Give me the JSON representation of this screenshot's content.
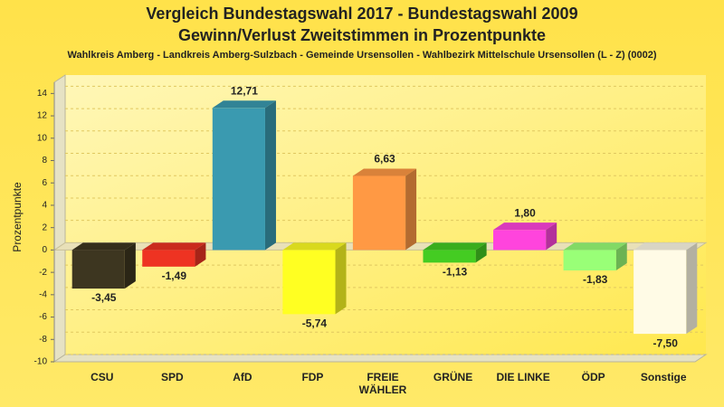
{
  "chart_data": {
    "type": "bar3d",
    "title": "Vergleich Bundestagswahl 2017 - Bundestagswahl 2009",
    "subtitle": "Gewinn/Verlust Zweitstimmen in Prozentpunkte",
    "caption": "Wahlkreis Amberg - Landkreis Amberg-Sulzbach - Gemeinde Ursensollen - Wahlbezirk Mittelschule Ursensollen (L - Z) (0002)",
    "y_label": "Prozentpunkte",
    "categories": [
      "CSU",
      "SPD",
      "AfD",
      "FDP",
      "FREIE\nWÄHLER",
      "GRÜNE",
      "DIE LINKE",
      "ÖDP",
      "Sonstige"
    ],
    "values": [
      -3.45,
      -1.49,
      12.71,
      -5.74,
      6.63,
      -1.13,
      1.8,
      -1.83,
      -7.5
    ],
    "value_labels": [
      "-3,45",
      "-1,49",
      "12,71",
      "-5,74",
      "6,63",
      "-1,13",
      "1,80",
      "-1,83",
      "-7,50"
    ],
    "colors": [
      "#3d3620",
      "#ee3322",
      "#3a9ab0",
      "#ffff22",
      "#ff9944",
      "#44cc22",
      "#ff44dd",
      "#99ff77",
      "#fffbe6"
    ],
    "ylim": [
      -10,
      15
    ],
    "yticks": [
      -10,
      -8,
      -6,
      -4,
      -2,
      0,
      2,
      4,
      6,
      8,
      10,
      12,
      14
    ],
    "grid": true
  }
}
